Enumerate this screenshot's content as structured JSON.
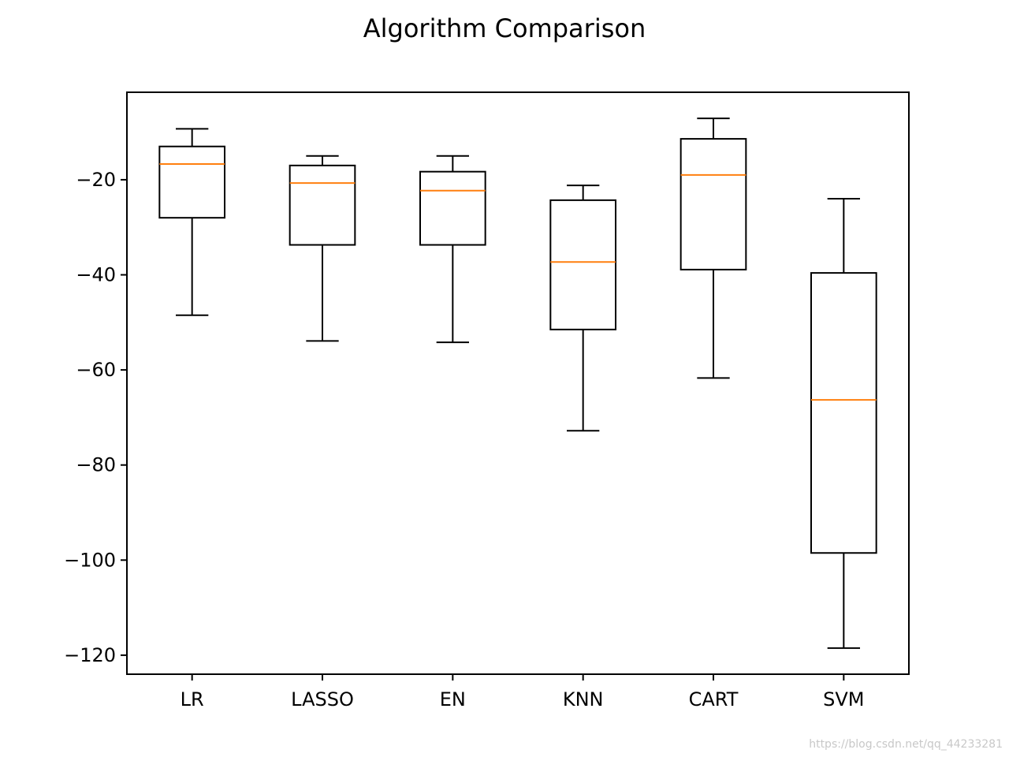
{
  "chart_data": {
    "type": "box",
    "title": "Algorithm Comparison",
    "xlabel": "",
    "ylabel": "",
    "ylim": [
      -124,
      -1.6
    ],
    "yticks": [
      -20,
      -40,
      -60,
      -80,
      -100,
      -120
    ],
    "ytick_labels": [
      "−20",
      "−40",
      "−60",
      "−80",
      "−100",
      "−120"
    ],
    "categories": [
      "LR",
      "LASSO",
      "EN",
      "KNN",
      "CART",
      "SVM"
    ],
    "boxes": [
      {
        "category": "LR",
        "whisker_low": -48.5,
        "q1": -28.0,
        "median": -16.7,
        "q3": -13.0,
        "whisker_high": -9.3
      },
      {
        "category": "LASSO",
        "whisker_low": -53.9,
        "q1": -33.7,
        "median": -20.7,
        "q3": -17.0,
        "whisker_high": -15.0
      },
      {
        "category": "EN",
        "whisker_low": -54.2,
        "q1": -33.7,
        "median": -22.3,
        "q3": -18.3,
        "whisker_high": -15.0
      },
      {
        "category": "KNN",
        "whisker_low": -72.8,
        "q1": -51.5,
        "median": -37.3,
        "q3": -24.3,
        "whisker_high": -21.2
      },
      {
        "category": "CART",
        "whisker_low": -61.7,
        "q1": -38.9,
        "median": -19.0,
        "q3": -11.4,
        "whisker_high": -7.1
      },
      {
        "category": "SVM",
        "whisker_low": -118.5,
        "q1": -98.5,
        "median": -66.3,
        "q3": -39.6,
        "whisker_high": -24.0
      }
    ],
    "grid": false,
    "legend": "none",
    "colors": {
      "box": "#000000",
      "median": "#ff7f0e",
      "background": "#ffffff"
    }
  },
  "watermark": "https://blog.csdn.net/qq_44233281"
}
